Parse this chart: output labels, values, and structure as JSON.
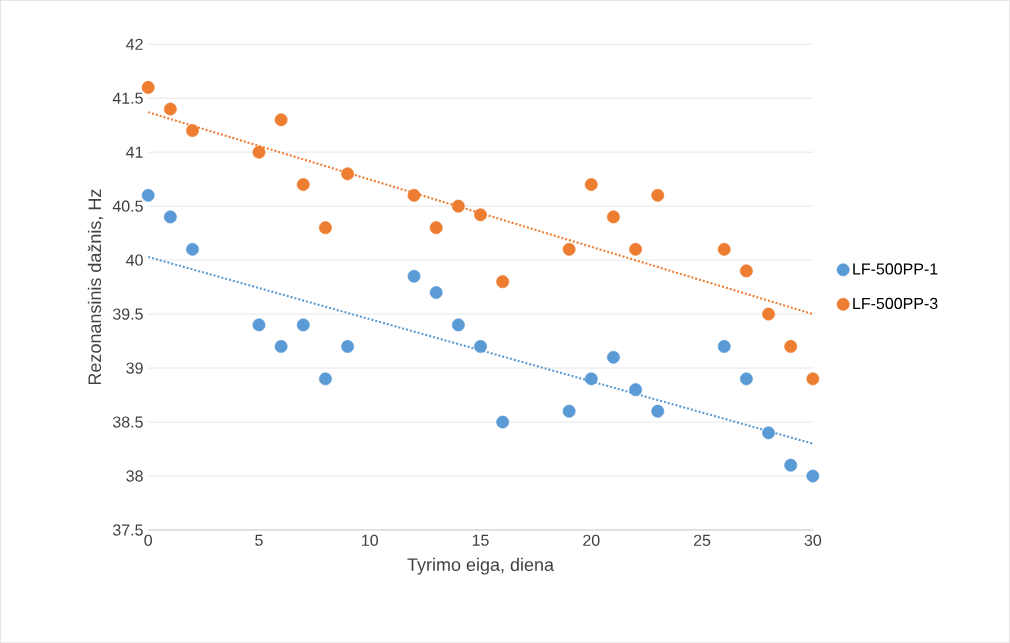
{
  "chart_data": {
    "type": "scatter",
    "xlabel": "Tyrimo eiga, diena",
    "ylabel": "Rezonansinis dažnis, Hz",
    "xlim": [
      0,
      30
    ],
    "xticks": [
      0,
      5,
      10,
      15,
      20,
      25,
      30
    ],
    "ylim": [
      37.5,
      42
    ],
    "yticks": [
      37.5,
      38,
      38.5,
      39,
      39.5,
      40,
      40.5,
      41,
      41.5,
      42
    ],
    "grid": "y",
    "legend": "right",
    "marker": "circle",
    "series": [
      {
        "name": "LF-500PP-1",
        "color": "#5b9bd5",
        "x": [
          0,
          1,
          2,
          5,
          6,
          7,
          8,
          9,
          12,
          13,
          14,
          15,
          16,
          19,
          20,
          21,
          22,
          23,
          26,
          27,
          28,
          29,
          30
        ],
        "values": [
          40.6,
          40.4,
          40.1,
          39.4,
          39.2,
          39.4,
          38.9,
          39.2,
          39.85,
          39.7,
          39.4,
          39.2,
          38.5,
          38.6,
          38.9,
          39.1,
          38.8,
          38.6,
          39.2,
          38.9,
          38.4,
          38.1,
          38.0
        ]
      },
      {
        "name": "LF-500PP-3",
        "color": "#ed7d31",
        "x": [
          0,
          1,
          2,
          5,
          6,
          7,
          8,
          9,
          12,
          13,
          14,
          15,
          16,
          19,
          20,
          21,
          22,
          23,
          26,
          27,
          28,
          29,
          30
        ],
        "values": [
          41.6,
          41.4,
          41.2,
          41.0,
          41.3,
          40.7,
          40.3,
          40.8,
          40.6,
          40.3,
          40.5,
          40.42,
          39.8,
          40.1,
          40.7,
          40.4,
          40.1,
          40.6,
          40.1,
          39.9,
          39.5,
          39.2,
          38.9
        ]
      },
      {
        "type": "line",
        "color": "#5b9bd5",
        "line_style": "dotted",
        "marker": "none",
        "x": [
          0,
          30
        ],
        "values": [
          40.03,
          38.3
        ]
      },
      {
        "type": "line",
        "color": "#ed7d31",
        "line_style": "dotted",
        "marker": "none",
        "x": [
          0,
          30
        ],
        "values": [
          41.37,
          39.5
        ]
      }
    ]
  }
}
